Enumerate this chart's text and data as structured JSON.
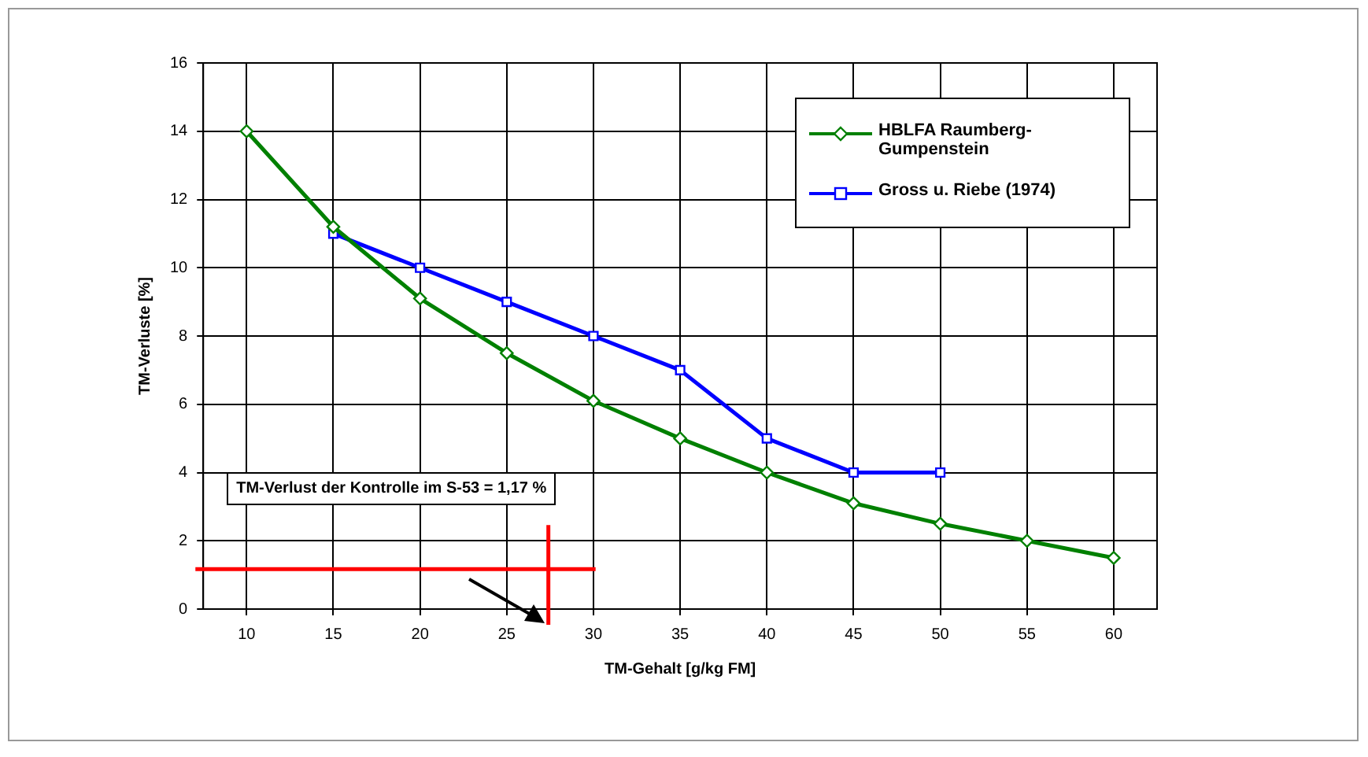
{
  "chart_data": {
    "type": "line",
    "xlabel": "TM-Gehalt [g/kg FM]",
    "ylabel": "TM-Verluste [%]",
    "x": [
      10,
      15,
      20,
      25,
      30,
      35,
      40,
      45,
      50,
      55,
      60
    ],
    "xlim": [
      7.5,
      62.5
    ],
    "xticks": [
      10,
      15,
      20,
      25,
      30,
      35,
      40,
      45,
      50,
      55,
      60
    ],
    "ylim": [
      0,
      16
    ],
    "yticks": [
      0,
      2,
      4,
      6,
      8,
      10,
      12,
      14,
      16
    ],
    "grid": true,
    "legend": "top right",
    "series": [
      {
        "name": "HBLFA Raumberg-Gumpenstein",
        "color": "#008000",
        "marker": "diamond",
        "values": [
          14,
          11.2,
          9.1,
          7.5,
          6.1,
          5,
          4,
          3.1,
          2.5,
          2,
          1.5
        ]
      },
      {
        "name": "Gross u. Riebe (1974)",
        "color": "#0000ff",
        "marker": "square",
        "values": [
          null,
          11,
          10,
          9,
          8,
          7,
          5,
          4,
          4,
          null,
          null
        ]
      }
    ],
    "ref_lines": [
      {
        "axis": "y",
        "value": 1.17,
        "color": "#ff0000"
      },
      {
        "axis": "x",
        "value": 27.4,
        "color": "#ff0000"
      }
    ],
    "annotations": [
      "TM-Verlust der Kontrolle im S-53 = 1,17 %"
    ]
  }
}
